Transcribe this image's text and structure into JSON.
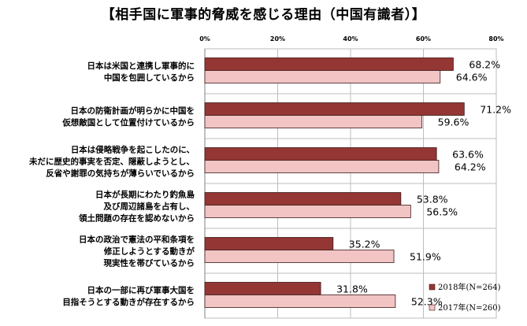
{
  "title": "【相手国に軍事的脅威を感じる理由（中国有識者）】",
  "chart_data": {
    "type": "bar",
    "orientation": "horizontal",
    "title": "【相手国に軍事的脅威を感じる理由（中国有識者）】",
    "xlim": [
      0,
      80
    ],
    "ticks": [
      "0%",
      "20%",
      "40%",
      "60%",
      "80%"
    ],
    "tick_values": [
      0,
      20,
      40,
      60,
      80
    ],
    "grid": true,
    "legend_position": "bottom-right",
    "categories": [
      [
        "日本は米国と連携し軍事的に",
        "中国を包囲しているから"
      ],
      [
        "日本の防衛計画が明らかに中国を",
        "仮想敵国として位置付けているから"
      ],
      [
        "日本は侵略戦争を起こしたのに、",
        "未だに歴史的事実を否定、隠蔽しようとし、",
        "反省や謝罪の気持ちが薄らいでいるから"
      ],
      [
        "日本が長期にわたり釣魚島",
        "及び周辺諸島を占有し、",
        "領土問題の存在を認めないから"
      ],
      [
        "日本の政治で憲法の平和条項を",
        "修正しようとする動きが",
        "現実性を帯びているから"
      ],
      [
        "日本の一部に再び軍事大国を",
        "目指そうとする動きが存在するから"
      ]
    ],
    "series": [
      {
        "name": "2018年(N=264)",
        "color": "#943634",
        "values": [
          68.2,
          71.2,
          63.6,
          53.8,
          35.2,
          31.8
        ],
        "labels": [
          "68.2%",
          "71.2%",
          "63.6%",
          "53.8%",
          "35.2%",
          "31.8%"
        ]
      },
      {
        "name": "2017年(N=260)",
        "color": "#f2c4c4",
        "values": [
          64.6,
          59.6,
          64.2,
          56.5,
          51.9,
          52.3
        ],
        "labels": [
          "64.6%",
          "59.6%",
          "64.2%",
          "56.5%",
          "51.9%",
          "52.3%"
        ]
      }
    ]
  }
}
